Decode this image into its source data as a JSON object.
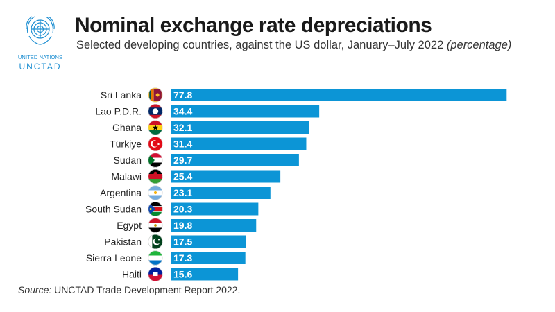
{
  "header": {
    "org_line": "UNITED NATIONS",
    "org_name": "UNCTAD",
    "title": "Nominal exchange rate depreciations",
    "subtitle_main": "Selected developing countries, against the US dollar, January–July 2022 ",
    "subtitle_unit": "(percentage)"
  },
  "colors": {
    "bar": "#0c95d6",
    "brand": "#1e8fd2",
    "label": "#ffffff"
  },
  "chart_data": {
    "type": "bar",
    "orientation": "horizontal",
    "title": "Nominal exchange rate depreciations",
    "subtitle": "Selected developing countries, against the US dollar, January–July 2022 (percentage)",
    "xlabel": "",
    "ylabel": "",
    "xlim": [
      0,
      80
    ],
    "categories": [
      "Sri Lanka",
      "Lao P.D.R.",
      "Ghana",
      "Türkiye",
      "Sudan",
      "Malawi",
      "Argentina",
      "South Sudan",
      "Egypt",
      "Pakistan",
      "Sierra Leone",
      "Haiti"
    ],
    "values": [
      77.8,
      34.4,
      32.1,
      31.4,
      29.7,
      25.4,
      23.1,
      20.3,
      19.8,
      17.5,
      17.3,
      15.6
    ],
    "value_labels": [
      "77.8",
      "34.4",
      "32.1",
      "31.4",
      "29.7",
      "25.4",
      "23.1",
      "20.3",
      "19.8",
      "17.5",
      "17.3",
      "15.6"
    ],
    "flag_icons": [
      "sri-lanka-flag-icon",
      "lao-flag-icon",
      "ghana-flag-icon",
      "turkiye-flag-icon",
      "sudan-flag-icon",
      "malawi-flag-icon",
      "argentina-flag-icon",
      "south-sudan-flag-icon",
      "egypt-flag-icon",
      "pakistan-flag-icon",
      "sierra-leone-flag-icon",
      "haiti-flag-icon"
    ],
    "grid": false,
    "legend": "none"
  },
  "footer": {
    "source_label": "Source:",
    "source_text": " UNCTAD Trade Development Report 2022."
  }
}
